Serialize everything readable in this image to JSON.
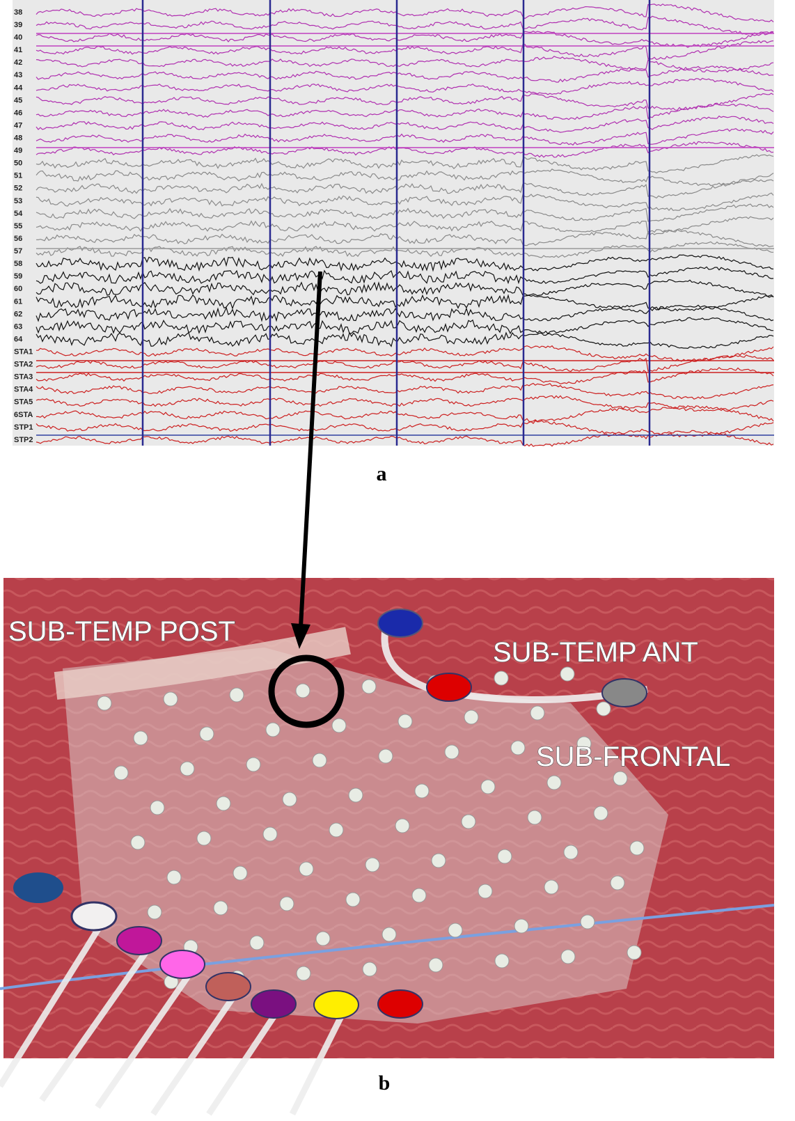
{
  "eeg_panel": {
    "label": "a",
    "channels": [
      "38",
      "39",
      "40",
      "41",
      "42",
      "43",
      "44",
      "45",
      "46",
      "47",
      "48",
      "49",
      "50",
      "51",
      "52",
      "53",
      "54",
      "55",
      "56",
      "57",
      "58",
      "59",
      "60",
      "61",
      "62",
      "63",
      "64",
      "STA1",
      "STA2",
      "STA3",
      "STA4",
      "STA5",
      "6STA",
      "STP1",
      "STP2"
    ]
  },
  "photo_panel": {
    "label": "b",
    "annotations": [
      "SUB-TEMP POST",
      "SUB-TEMP ANT",
      "SUB-FRONTAL"
    ]
  }
}
